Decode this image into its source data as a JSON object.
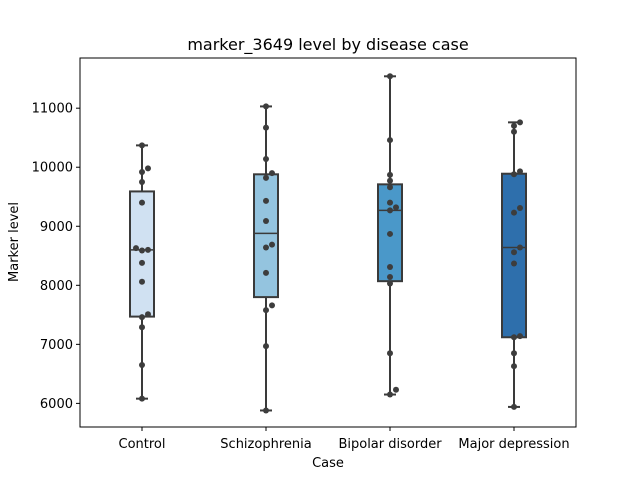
{
  "chart_data": {
    "type": "box",
    "title": "marker_3649 level by disease case",
    "xlabel": "Case",
    "ylabel": "Marker level",
    "ylim": [
      5600,
      11850
    ],
    "yticks": [
      6000,
      7000,
      8000,
      9000,
      10000,
      11000
    ],
    "grid": false,
    "categories": [
      "Control",
      "Schizophrenia",
      "Bipolar disorder",
      "Major depression"
    ],
    "colors": [
      "#d0e1f2",
      "#94c4df",
      "#4a98c9",
      "#2e6fac"
    ],
    "point_color": "#3d3d3d",
    "box_stats": [
      {
        "whisker_low": 6080,
        "q1": 7470,
        "median": 8600,
        "q3": 9590,
        "whisker_high": 10370
      },
      {
        "whisker_low": 5880,
        "q1": 7800,
        "median": 8880,
        "q3": 9880,
        "whisker_high": 11030
      },
      {
        "whisker_low": 6150,
        "q1": 8070,
        "median": 9270,
        "q3": 9710,
        "whisker_high": 11540
      },
      {
        "whisker_low": 5940,
        "q1": 7120,
        "median": 8640,
        "q3": 9890,
        "whisker_high": 10760
      }
    ],
    "points": [
      [
        10370,
        9980,
        9920,
        9750,
        9400,
        8630,
        8600,
        8590,
        8380,
        8060,
        7510,
        7460,
        7290,
        6650,
        6080
      ],
      [
        11030,
        10670,
        10140,
        9900,
        9820,
        9430,
        9090,
        8690,
        8640,
        8210,
        7660,
        7580,
        6970,
        5880
      ],
      [
        11540,
        10460,
        9870,
        9770,
        9660,
        9400,
        9320,
        9270,
        8870,
        8310,
        8140,
        8030,
        6850,
        6230,
        6150
      ],
      [
        10760,
        10700,
        10600,
        9930,
        9880,
        9310,
        9230,
        8640,
        8560,
        8370,
        7140,
        7120,
        6850,
        6630,
        5940
      ]
    ]
  }
}
